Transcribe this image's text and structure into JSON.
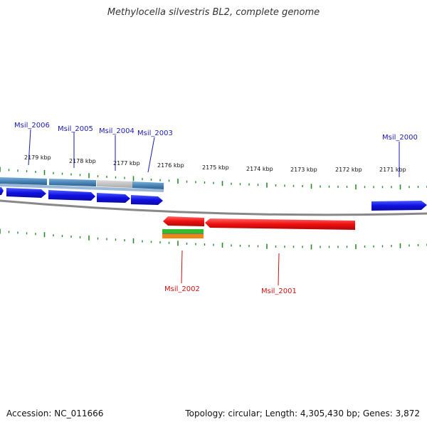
{
  "map": {
    "title": "Methylocella silvestris BL2, complete genome",
    "accession": "Accession: NC_011666",
    "summary": "Topology: circular; Length: 4,305,430 bp; Genes: 3,872"
  },
  "colors": {
    "background": "#ffffff",
    "backbone": "#888888",
    "tick": "#2a8a2a",
    "forward_gene": "#1010e0",
    "reverse_gene": "#ee1010",
    "forward_label": "#1a1ab0",
    "reverse_label": "#cc1010",
    "cds_feature": "#4a86b8",
    "gap_feature": "#bbbbbb",
    "misc_green": "#33bb33",
    "misc_orange": "#ee8811"
  },
  "scale": {
    "unit": "kbp",
    "labels": [
      "2179 kbp",
      "2178 kbp",
      "2177 kbp",
      "2176 kbp",
      "2175 kbp",
      "2174 kbp",
      "2173 kbp",
      "2172 kbp",
      "2171 kbp"
    ]
  },
  "genes": [
    {
      "name": "Msil_2006",
      "strand": "forward"
    },
    {
      "name": "Msil_2005",
      "strand": "forward"
    },
    {
      "name": "Msil_2004",
      "strand": "forward"
    },
    {
      "name": "Msil_2003",
      "strand": "forward"
    },
    {
      "name": "Msil_2000",
      "strand": "forward"
    },
    {
      "name": "Msil_2002",
      "strand": "reverse"
    },
    {
      "name": "Msil_2001",
      "strand": "reverse"
    }
  ]
}
